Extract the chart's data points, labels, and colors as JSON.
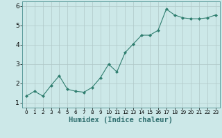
{
  "x": [
    0,
    1,
    2,
    3,
    4,
    5,
    6,
    7,
    8,
    9,
    10,
    11,
    12,
    13,
    14,
    15,
    16,
    17,
    18,
    19,
    20,
    21,
    22,
    23
  ],
  "y": [
    1.35,
    1.6,
    1.35,
    1.9,
    2.4,
    1.7,
    1.6,
    1.55,
    1.8,
    2.3,
    3.0,
    2.6,
    3.6,
    4.05,
    4.5,
    4.5,
    4.75,
    5.85,
    5.55,
    5.4,
    5.35,
    5.35,
    5.4,
    5.55
  ],
  "line_color": "#2e7d6e",
  "marker": "D",
  "marker_size": 2.0,
  "bg_color": "#cce8e8",
  "grid_color": "#b0c8c8",
  "xlabel": "Humidex (Indice chaleur)",
  "ylabel": "",
  "xlim": [
    -0.5,
    23.5
  ],
  "ylim": [
    0.75,
    6.25
  ],
  "yticks": [
    1,
    2,
    3,
    4,
    5,
    6
  ],
  "xticks": [
    0,
    1,
    2,
    3,
    4,
    5,
    6,
    7,
    8,
    9,
    10,
    11,
    12,
    13,
    14,
    15,
    16,
    17,
    18,
    19,
    20,
    21,
    22,
    23
  ],
  "xlabel_fontsize": 7.5,
  "tick_fontsize": 6.5
}
